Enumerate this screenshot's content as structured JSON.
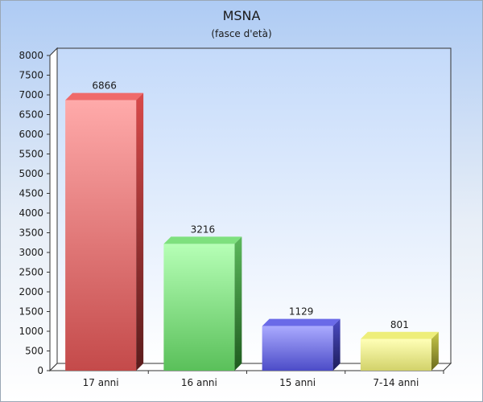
{
  "chart_data": {
    "type": "bar",
    "title": "MSNA",
    "subtitle": "(fasce d'età)",
    "categories": [
      "17 anni",
      "16 anni",
      "15 anni",
      "7-14 anni"
    ],
    "values": [
      6866,
      3216,
      1129,
      801
    ],
    "data_labels": [
      "6866",
      "3216",
      "1129",
      "801"
    ],
    "ylim": [
      0,
      8000
    ],
    "yticks": [
      0,
      500,
      1000,
      1500,
      2000,
      2500,
      3000,
      3500,
      4000,
      4500,
      5000,
      5500,
      6000,
      6500,
      7000,
      7500,
      8000
    ],
    "grid": false,
    "legend": "none",
    "style": "3d",
    "colors": [
      {
        "front_top": "#ffaaaa",
        "front_bottom": "#c44a4a",
        "top": "#ef6a6a",
        "side_top": "#d94a4a",
        "side_bottom": "#5a1c1c"
      },
      {
        "front_top": "#b6ffb6",
        "front_bottom": "#5ac05a",
        "top": "#7ee07e",
        "side_top": "#5cb85c",
        "side_bottom": "#1e5a1e"
      },
      {
        "front_top": "#aaaaff",
        "front_bottom": "#4c4cc8",
        "top": "#6a6ae8",
        "side_top": "#4c4cc4",
        "side_bottom": "#1c1c5a"
      },
      {
        "front_top": "#ffffb6",
        "front_bottom": "#d2d26a",
        "top": "#eeee7a",
        "side_top": "#c8c84a",
        "side_bottom": "#6a6a1c"
      }
    ],
    "background_top": "#aecbf4",
    "background_bottom": "#ffffff",
    "plot_background_top": "#c4dafa",
    "plot_background_bottom": "#ffffff",
    "axis_color": "#333333"
  }
}
